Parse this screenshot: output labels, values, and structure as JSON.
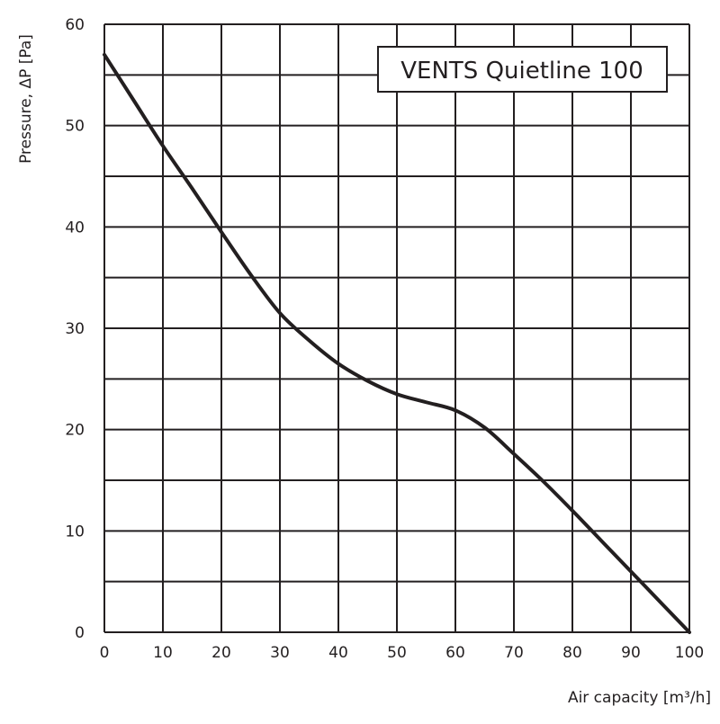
{
  "chart_data": {
    "type": "line",
    "title": "VENTS Quietline 100",
    "xlabel": "Air capacity [m³/h]",
    "ylabel": "Pressure, ΔP [Pa]",
    "xlim": [
      0,
      100
    ],
    "ylim": [
      0,
      60
    ],
    "xticks": [
      0,
      10,
      20,
      30,
      40,
      50,
      60,
      70,
      80,
      90,
      100
    ],
    "yticks": [
      0,
      10,
      20,
      30,
      40,
      50,
      60
    ],
    "grid": true,
    "grid_minor_y_step": 5,
    "line_color": "#231f20",
    "series": [
      {
        "x": [
          0,
          5,
          10,
          15,
          20,
          25,
          30,
          35,
          40,
          45,
          50,
          55,
          60,
          65,
          70,
          75,
          80,
          85,
          90,
          95,
          100
        ],
        "y": [
          57,
          52.5,
          48,
          43.8,
          39.5,
          35.3,
          31.5,
          28.8,
          26.5,
          24.8,
          23.5,
          22.7,
          21.9,
          20.2,
          17.6,
          14.9,
          12,
          9,
          6,
          3,
          0
        ]
      }
    ]
  }
}
